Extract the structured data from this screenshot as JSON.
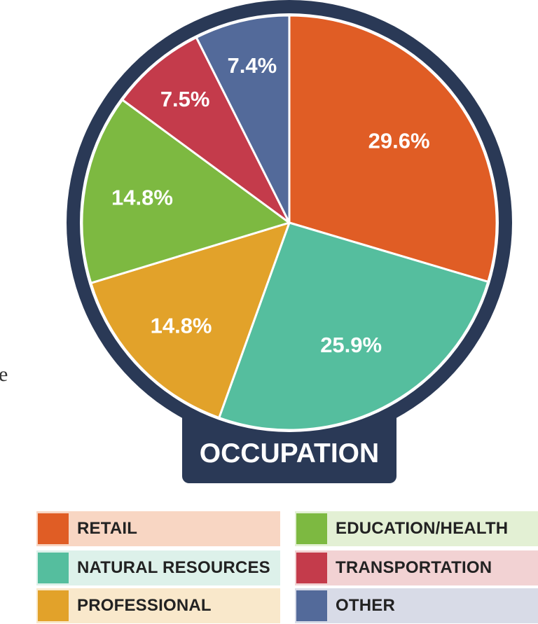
{
  "stray_text": "e",
  "chart_data": {
    "type": "pie",
    "title": "OCCUPATION",
    "slices": [
      {
        "label": "RETAIL",
        "value": 29.6,
        "display": "29.6%",
        "color": "#E05D25",
        "legend_bg": "#F8D6C3"
      },
      {
        "label": "NATURAL RESOURCES",
        "value": 25.9,
        "display": "25.9%",
        "color": "#55BE9E",
        "legend_bg": "#DDF1EA"
      },
      {
        "label": "PROFESSIONAL",
        "value": 14.8,
        "display": "14.8%",
        "color": "#E2A22A",
        "legend_bg": "#F9E8CB"
      },
      {
        "label": "EDUCATION/HEALTH",
        "value": 14.8,
        "display": "14.8%",
        "color": "#7DB941",
        "legend_bg": "#E3F0D4"
      },
      {
        "label": "TRANSPORTATION",
        "value": 7.5,
        "display": "7.5%",
        "color": "#C43B4B",
        "legend_bg": "#F2D2D3"
      },
      {
        "label": "OTHER",
        "value": 7.4,
        "display": "7.4%",
        "color": "#536A9A",
        "legend_bg": "#D8DBE7"
      }
    ],
    "frame_color": "#2A3956"
  }
}
